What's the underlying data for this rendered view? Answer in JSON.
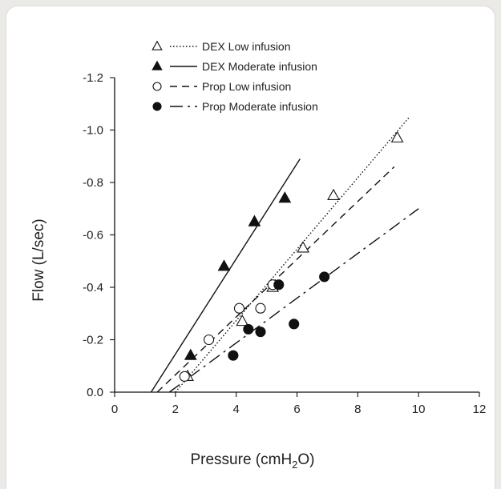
{
  "chart_data": {
    "type": "scatter",
    "title": "",
    "xlabel": {
      "main": "Pressure (cmH",
      "sub": "2",
      "tail": "O)"
    },
    "ylabel": "Flow (L/sec)",
    "xlim": [
      0,
      12
    ],
    "ylim": [
      0,
      -1.2
    ],
    "x_ticks": [
      {
        "value": 0,
        "label": "0"
      },
      {
        "value": 2,
        "label": "2"
      },
      {
        "value": 4,
        "label": "4"
      },
      {
        "value": 6,
        "label": "6"
      },
      {
        "value": 8,
        "label": "8"
      },
      {
        "value": 10,
        "label": "10"
      },
      {
        "value": 12,
        "label": "12"
      }
    ],
    "y_ticks": [
      {
        "value": 0,
        "label": "0.0"
      },
      {
        "value": -0.2,
        "label": "-0.2"
      },
      {
        "value": -0.4,
        "label": "-0.4"
      },
      {
        "value": -0.6,
        "label": "-0.6"
      },
      {
        "value": -0.8,
        "label": "-0.8"
      },
      {
        "value": -1.0,
        "label": "-1.0"
      },
      {
        "value": -1.2,
        "label": "-1.2"
      }
    ],
    "grid": false,
    "legend_position": "top-left",
    "series": [
      {
        "name": "DEX Low infusion",
        "marker": "triangle-open",
        "line": "dotted",
        "points": [
          [
            2.4,
            -0.06
          ],
          [
            4.2,
            -0.27
          ],
          [
            5.2,
            -0.4
          ],
          [
            6.2,
            -0.55
          ],
          [
            7.2,
            -0.75
          ],
          [
            9.3,
            -0.97
          ]
        ],
        "fit": [
          [
            2.0,
            -0.0
          ],
          [
            9.7,
            -1.05
          ]
        ]
      },
      {
        "name": "DEX Moderate infusion",
        "marker": "triangle-filled",
        "line": "solid",
        "points": [
          [
            2.5,
            -0.14
          ],
          [
            3.6,
            -0.48
          ],
          [
            4.6,
            -0.65
          ],
          [
            5.6,
            -0.74
          ]
        ],
        "fit": [
          [
            1.2,
            0.0
          ],
          [
            6.1,
            -0.89
          ]
        ]
      },
      {
        "name": "Prop Low infusion",
        "marker": "circle-open",
        "line": "dashed",
        "points": [
          [
            2.3,
            -0.06
          ],
          [
            3.1,
            -0.2
          ],
          [
            4.1,
            -0.32
          ],
          [
            4.8,
            -0.32
          ],
          [
            5.2,
            -0.41
          ]
        ],
        "fit": [
          [
            1.4,
            0.0
          ],
          [
            9.2,
            -0.86
          ]
        ]
      },
      {
        "name": "Prop Moderate infusion",
        "marker": "circle-filled",
        "line": "dashdot",
        "points": [
          [
            3.9,
            -0.14
          ],
          [
            4.4,
            -0.24
          ],
          [
            4.8,
            -0.23
          ],
          [
            5.4,
            -0.41
          ],
          [
            5.9,
            -0.26
          ],
          [
            6.9,
            -0.44
          ]
        ],
        "fit": [
          [
            1.8,
            0.0
          ],
          [
            10.0,
            -0.7
          ]
        ]
      }
    ]
  }
}
